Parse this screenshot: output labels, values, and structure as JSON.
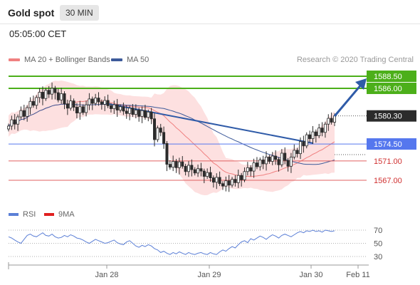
{
  "header": {
    "title": "Gold spot",
    "timeframe": "30 MIN",
    "time": "05:05:00 CET"
  },
  "legend": {
    "bollinger_label": "MA 20 + Bollinger Bands",
    "ma50_label": "MA 50",
    "bollinger_color": "#f08080",
    "ma50_color": "#3d5a9a"
  },
  "credit": "Research © 2020 Trading Central",
  "rsi_legend": {
    "rsi_label": "RSI",
    "ma_label": "9MA",
    "rsi_color": "#5b7fd6",
    "ma_color": "#e02020"
  },
  "chart_data": {
    "type": "candlestick",
    "price_levels": [
      {
        "label": "1588.50",
        "value": 1588.5,
        "style": "green-box"
      },
      {
        "label": "1586.00",
        "value": 1586.0,
        "style": "green-box"
      },
      {
        "label": "1580.30",
        "value": 1580.3,
        "style": "dark-box"
      },
      {
        "label": "1574.50",
        "value": 1574.5,
        "style": "blue-box"
      },
      {
        "label": "1571.00",
        "value": 1571.0,
        "style": "red-text"
      },
      {
        "label": "1567.00",
        "value": 1567.0,
        "style": "red-text"
      }
    ],
    "x_ticks": [
      "Jan 28",
      "Jan 29",
      "Jan 30",
      "Feb 11"
    ],
    "rsi_ticks": [
      "70",
      "50",
      "30"
    ],
    "rsi_range": [
      0,
      100
    ],
    "colors": {
      "level_green": "#4caf1a",
      "level_blue": "#5577ee",
      "level_red": "#e06060",
      "arrow": "#2f5ba8",
      "candle_up": "#2b2b2b",
      "candle_down": "#2b2b2b",
      "band_fill": "#fde0e0"
    },
    "closes": [
      1578.2,
      1579.5,
      1578.6,
      1580.1,
      1581.4,
      1580.2,
      1582.0,
      1583.3,
      1582.5,
      1584.1,
      1585.2,
      1583.9,
      1585.6,
      1584.8,
      1586.0,
      1585.1,
      1583.6,
      1584.9,
      1582.8,
      1581.9,
      1583.4,
      1582.1,
      1580.9,
      1582.2,
      1581.0,
      1582.6,
      1583.8,
      1582.9,
      1584.0,
      1583.2,
      1582.7,
      1583.5,
      1582.4,
      1581.8,
      1582.6,
      1581.5,
      1582.2,
      1581.3,
      1580.8,
      1581.9,
      1580.6,
      1581.5,
      1580.2,
      1581.4,
      1580.0,
      1581.1,
      1579.7,
      1575.4,
      1577.8,
      1576.9,
      1574.6,
      1570.3,
      1569.7,
      1570.9,
      1569.6,
      1570.8,
      1569.9,
      1568.8,
      1570.1,
      1569.2,
      1568.5,
      1569.4,
      1568.9,
      1567.8,
      1568.6,
      1567.5,
      1566.6,
      1567.6,
      1566.3,
      1565.8,
      1566.9,
      1566.0,
      1567.2,
      1566.5,
      1568.0,
      1567.1,
      1568.8,
      1569.6,
      1568.9,
      1570.6,
      1569.8,
      1571.2,
      1570.4,
      1571.8,
      1570.9,
      1572.0,
      1571.3,
      1570.2,
      1572.6,
      1571.1,
      1569.9,
      1571.8,
      1573.2,
      1572.5,
      1575.0,
      1574.1,
      1576.4,
      1575.6,
      1577.0,
      1576.2,
      1577.8,
      1576.9,
      1578.6,
      1579.8,
      1579.0,
      1580.3
    ],
    "rsi": [
      60,
      58,
      55,
      52,
      50,
      56,
      62,
      64,
      61,
      60,
      63,
      66,
      62,
      61,
      64,
      60,
      58,
      59,
      62,
      60,
      63,
      61,
      58,
      57,
      55,
      52,
      50,
      53,
      56,
      54,
      52,
      50,
      51,
      53,
      55,
      51,
      49,
      48,
      52,
      54,
      50,
      46,
      44,
      47,
      45,
      48,
      46,
      42,
      40,
      36,
      38,
      35,
      33,
      36,
      34,
      37,
      35,
      33,
      36,
      34,
      33,
      35,
      36,
      34,
      33,
      36,
      34,
      33,
      37,
      40,
      38,
      42,
      45,
      43,
      48,
      52,
      54,
      51,
      57,
      55,
      58,
      61,
      59,
      56,
      60,
      63,
      61,
      58,
      62,
      64,
      62,
      60,
      63,
      66,
      68,
      66,
      69,
      68,
      70,
      68,
      69,
      67,
      70,
      69,
      68,
      69
    ]
  }
}
